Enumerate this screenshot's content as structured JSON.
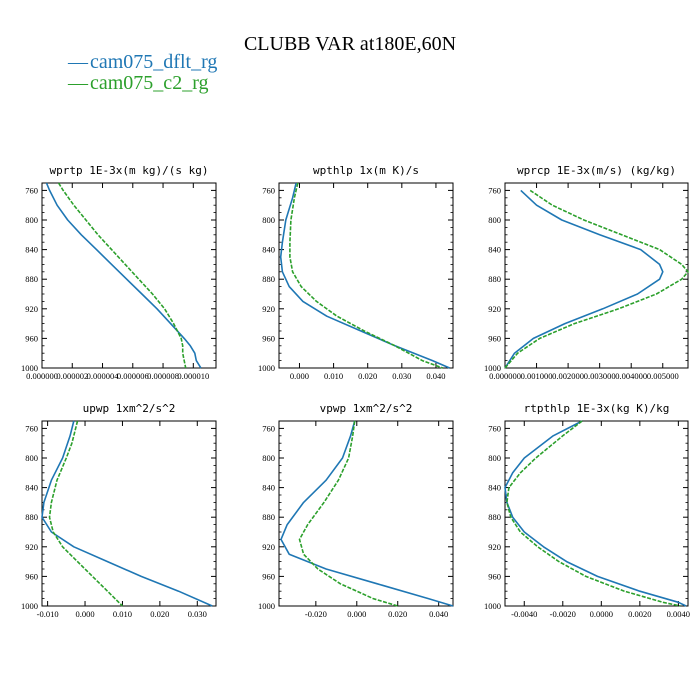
{
  "title": "CLUBB VAR at180E,60N",
  "legend": [
    {
      "label": "cam075_dflt_rg",
      "color": "#1f77b4"
    },
    {
      "label": "cam075_c2_rg",
      "color": "#2ca02c"
    }
  ],
  "chart_data": [
    {
      "type": "line",
      "title": "wprtp  1E-3x(m kg)/(s kg)",
      "ylim": [
        1000,
        750
      ],
      "yticks": [
        760,
        800,
        840,
        880,
        920,
        960,
        1000
      ],
      "ytick_labels": [
        "760",
        "800",
        "840",
        "880",
        "920",
        "960",
        "1000"
      ],
      "xlim": [
        0.0,
        1.15e-05
      ],
      "xticks": [
        0.0,
        2e-06,
        4e-06,
        6e-06,
        8e-06,
        1e-05
      ],
      "xtick_labels": [
        "0.000000",
        "0.000002",
        "0.000004",
        "0.000006",
        "0.000008",
        "0.000010"
      ],
      "series": [
        {
          "name": "cam075_dflt_rg",
          "color": "#1f77b4",
          "dashed": false,
          "pressure": [
            750,
            760,
            780,
            800,
            820,
            840,
            860,
            880,
            900,
            920,
            940,
            960,
            970,
            980,
            990,
            1000
          ],
          "values": [
            3e-07,
            5e-07,
            1e-06,
            1.7e-06,
            2.6e-06,
            3.6e-06,
            4.6e-06,
            5.6e-06,
            6.6e-06,
            7.6e-06,
            8.5e-06,
            9.4e-06,
            9.8e-06,
            1.01e-05,
            1.02e-05,
            1.05e-05
          ]
        },
        {
          "name": "cam075_c2_rg",
          "color": "#2ca02c",
          "dashed": true,
          "pressure": [
            750,
            760,
            780,
            800,
            820,
            840,
            860,
            880,
            900,
            920,
            940,
            960,
            970,
            980,
            990,
            1000
          ],
          "values": [
            1.1e-06,
            1.4e-06,
            2.1e-06,
            2.9e-06,
            3.7e-06,
            4.6e-06,
            5.5e-06,
            6.4e-06,
            7.3e-06,
            8.1e-06,
            8.7e-06,
            9.2e-06,
            9.3e-06,
            9.3e-06,
            9.4e-06,
            9.5e-06
          ]
        }
      ]
    },
    {
      "type": "line",
      "title": "wpthlp  1x(m K)/s",
      "ylim": [
        1000,
        750
      ],
      "yticks": [
        760,
        800,
        840,
        880,
        920,
        960,
        1000
      ],
      "ytick_labels": [
        "760",
        "800",
        "840",
        "880",
        "920",
        "960",
        "1000"
      ],
      "xlim": [
        -0.006,
        0.045
      ],
      "xticks": [
        0.0,
        0.01,
        0.02,
        0.03,
        0.04
      ],
      "xtick_labels": [
        "0.000",
        "0.010",
        "0.020",
        "0.030",
        "0.040"
      ],
      "series": [
        {
          "name": "cam075_dflt_rg",
          "color": "#1f77b4",
          "dashed": false,
          "pressure": [
            750,
            770,
            800,
            830,
            850,
            870,
            890,
            910,
            930,
            950,
            970,
            990,
            1000
          ],
          "values": [
            -0.001,
            -0.002,
            -0.004,
            -0.005,
            -0.0055,
            -0.005,
            -0.003,
            0.001,
            0.008,
            0.018,
            0.028,
            0.039,
            0.044
          ]
        },
        {
          "name": "cam075_c2_rg",
          "color": "#2ca02c",
          "dashed": true,
          "pressure": [
            750,
            770,
            800,
            830,
            850,
            870,
            890,
            910,
            930,
            950,
            970,
            990,
            1000
          ],
          "values": [
            -0.0005,
            -0.0015,
            -0.0025,
            -0.0028,
            -0.0028,
            -0.002,
            0.0005,
            0.005,
            0.011,
            0.019,
            0.028,
            0.036,
            0.042
          ]
        }
      ]
    },
    {
      "type": "line",
      "title": "wprcp  1E-3x(m/s) (kg/kg)",
      "ylim": [
        1000,
        750
      ],
      "yticks": [
        760,
        800,
        840,
        880,
        920,
        960,
        1000
      ],
      "ytick_labels": [
        "760",
        "800",
        "840",
        "880",
        "920",
        "960",
        "1000"
      ],
      "xlim": [
        0.0,
        0.0058
      ],
      "xticks": [
        0.0,
        0.001,
        0.002,
        0.003,
        0.004,
        0.005
      ],
      "xtick_labels": [
        "0.000000",
        "0.001000",
        "0.002000",
        "0.003000",
        "0.004000",
        "0.005000"
      ],
      "series": [
        {
          "name": "cam075_dflt_rg",
          "color": "#1f77b4",
          "dashed": false,
          "pressure": [
            760,
            780,
            800,
            820,
            840,
            860,
            870,
            880,
            900,
            920,
            940,
            960,
            980,
            1000
          ],
          "values": [
            0.0005,
            0.001,
            0.0018,
            0.003,
            0.0043,
            0.0049,
            0.005,
            0.0049,
            0.0042,
            0.0031,
            0.0019,
            0.0009,
            0.0003,
            0.0
          ]
        },
        {
          "name": "cam075_c2_rg",
          "color": "#2ca02c",
          "dashed": true,
          "pressure": [
            760,
            780,
            800,
            820,
            840,
            860,
            870,
            880,
            900,
            920,
            940,
            960,
            980,
            1000
          ],
          "values": [
            0.0008,
            0.0015,
            0.0025,
            0.0037,
            0.0049,
            0.0056,
            0.0058,
            0.0056,
            0.0048,
            0.0036,
            0.0022,
            0.0011,
            0.0004,
            0.0
          ]
        }
      ]
    },
    {
      "type": "line",
      "title": "upwp  1xm^2/s^2",
      "ylim": [
        1000,
        750
      ],
      "yticks": [
        760,
        800,
        840,
        880,
        920,
        960,
        1000
      ],
      "ytick_labels": [
        "760",
        "800",
        "840",
        "880",
        "920",
        "960",
        "1000"
      ],
      "xlim": [
        -0.0115,
        0.035
      ],
      "xticks": [
        -0.01,
        0.0,
        0.01,
        0.02,
        0.03
      ],
      "xtick_labels": [
        "-0.010",
        "0.000",
        "0.010",
        "0.020",
        "0.030"
      ],
      "series": [
        {
          "name": "cam075_dflt_rg",
          "color": "#1f77b4",
          "dashed": false,
          "pressure": [
            750,
            770,
            800,
            830,
            860,
            880,
            900,
            920,
            940,
            960,
            980,
            1000
          ],
          "values": [
            -0.003,
            -0.004,
            -0.006,
            -0.009,
            -0.011,
            -0.0115,
            -0.009,
            -0.003,
            0.006,
            0.015,
            0.025,
            0.034
          ]
        },
        {
          "name": "cam075_c2_rg",
          "color": "#2ca02c",
          "dashed": true,
          "pressure": [
            750,
            780,
            800,
            830,
            860,
            880,
            900,
            920,
            940,
            960,
            980,
            1000
          ],
          "values": [
            -0.002,
            -0.0035,
            -0.005,
            -0.0075,
            -0.009,
            -0.0095,
            -0.0085,
            -0.006,
            -0.002,
            0.002,
            0.006,
            0.01
          ]
        }
      ]
    },
    {
      "type": "line",
      "title": "vpwp  1xm^2/s^2",
      "ylim": [
        1000,
        750
      ],
      "yticks": [
        760,
        800,
        840,
        880,
        920,
        960,
        1000
      ],
      "ytick_labels": [
        "760",
        "800",
        "840",
        "880",
        "920",
        "960",
        "1000"
      ],
      "xlim": [
        -0.038,
        0.047
      ],
      "xticks": [
        -0.02,
        0.0,
        0.02,
        0.04
      ],
      "xtick_labels": [
        "-0.020",
        "0.000",
        "0.020",
        "0.040"
      ],
      "series": [
        {
          "name": "cam075_dflt_rg",
          "color": "#1f77b4",
          "dashed": false,
          "pressure": [
            750,
            770,
            800,
            830,
            860,
            890,
            910,
            930,
            950,
            970,
            990,
            1000
          ],
          "values": [
            -0.001,
            -0.003,
            -0.007,
            -0.015,
            -0.026,
            -0.034,
            -0.037,
            -0.033,
            -0.015,
            0.01,
            0.035,
            0.047
          ]
        },
        {
          "name": "cam075_c2_rg",
          "color": "#2ca02c",
          "dashed": true,
          "pressure": [
            750,
            770,
            800,
            830,
            860,
            890,
            910,
            930,
            950,
            970,
            990,
            1000
          ],
          "values": [
            -0.001,
            -0.002,
            -0.004,
            -0.009,
            -0.016,
            -0.024,
            -0.028,
            -0.026,
            -0.019,
            -0.008,
            0.008,
            0.02
          ]
        }
      ]
    },
    {
      "type": "line",
      "title": "rtpthlp  1E-3x(kg K)/kg",
      "ylim": [
        1000,
        750
      ],
      "yticks": [
        760,
        800,
        840,
        880,
        920,
        960,
        1000
      ],
      "ytick_labels": [
        "760",
        "800",
        "840",
        "880",
        "920",
        "960",
        "1000"
      ],
      "xlim": [
        -0.005,
        0.0045
      ],
      "xticks": [
        -0.004,
        -0.002,
        0.0,
        0.002,
        0.004
      ],
      "xtick_labels": [
        "-0.0040",
        "-0.0020",
        "0.0000",
        "0.0020",
        "0.0040"
      ],
      "series": [
        {
          "name": "cam075_dflt_rg",
          "color": "#1f77b4",
          "dashed": false,
          "pressure": [
            750,
            770,
            800,
            820,
            840,
            860,
            880,
            900,
            920,
            940,
            960,
            980,
            995,
            1000
          ],
          "values": [
            -0.001,
            -0.0025,
            -0.004,
            -0.0046,
            -0.005,
            -0.0049,
            -0.0046,
            -0.004,
            -0.003,
            -0.0018,
            -0.0002,
            0.002,
            0.004,
            0.0044
          ]
        },
        {
          "name": "cam075_c2_rg",
          "color": "#2ca02c",
          "dashed": true,
          "pressure": [
            750,
            770,
            800,
            820,
            840,
            860,
            880,
            900,
            920,
            940,
            960,
            980,
            995,
            1000
          ],
          "values": [
            -0.001,
            -0.002,
            -0.0034,
            -0.0042,
            -0.0048,
            -0.0049,
            -0.0047,
            -0.0042,
            -0.0033,
            -0.0022,
            -0.0008,
            0.0012,
            0.0032,
            0.0041
          ]
        }
      ]
    }
  ]
}
